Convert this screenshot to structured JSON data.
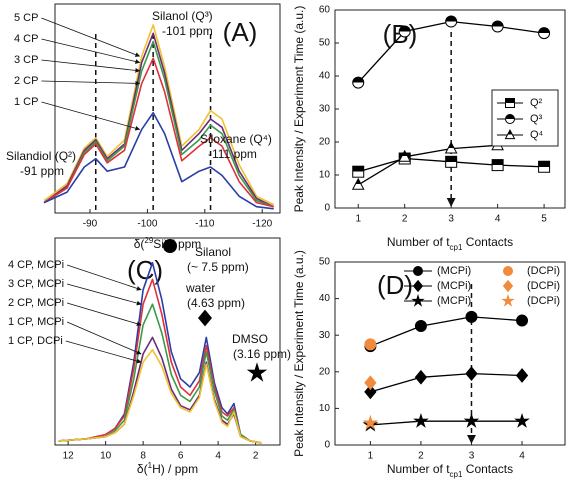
{
  "chart_data": [
    {
      "type": "line",
      "panel_label": "(A)",
      "x_label": [
        "δ(",
        "29",
        "Si) / ppm"
      ],
      "x": [
        -82,
        -86,
        -89,
        -91,
        -93,
        -96,
        -99,
        -101,
        -103,
        -106,
        -109,
        -111,
        -113,
        -116,
        -119,
        -122
      ],
      "xlim": [
        -83.9,
        -123.1
      ],
      "xticks": [
        -90,
        -100,
        -110,
        -120
      ],
      "ylim": [
        0,
        100
      ],
      "series": [
        {
          "name": "5 CP",
          "color": "#f2c12e",
          "values": [
            6,
            14,
            31,
            36,
            27,
            35,
            75,
            90,
            70,
            32,
            40,
            49,
            45,
            23,
            8,
            4
          ]
        },
        {
          "name": "4 CP",
          "color": "#6a2c7a",
          "values": [
            5,
            13,
            30,
            35,
            26,
            33,
            72,
            86,
            67,
            30,
            38,
            45,
            41,
            20,
            7,
            3
          ]
        },
        {
          "name": "3 CP",
          "color": "#3a9a4a",
          "values": [
            5,
            12,
            29,
            34,
            25,
            32,
            68,
            82,
            64,
            28,
            35,
            42,
            38,
            18,
            6,
            3
          ]
        },
        {
          "name": "2 CP",
          "color": "#e0303a",
          "values": [
            5,
            12,
            28,
            33,
            24,
            30,
            62,
            74,
            58,
            25,
            32,
            36,
            32,
            15,
            5,
            3
          ]
        },
        {
          "name": "1 CP",
          "color": "#2a3ea8",
          "values": [
            5,
            10,
            22,
            26,
            20,
            22,
            40,
            48,
            38,
            15,
            20,
            22,
            18,
            8,
            3,
            2
          ]
        }
      ],
      "reference_lines": [
        -91,
        -101,
        -111
      ],
      "annotations": [
        "Silanol (Q³)",
        "-101 ppm",
        "Siloxane (Q⁴)",
        "-111 ppm",
        "Silandiol (Q²)",
        "-91 ppm"
      ]
    },
    {
      "type": "line",
      "panel_label": "(B)",
      "x_label": [
        "Number of t",
        "cp1",
        " Contacts"
      ],
      "y_label": "Peak Intensity / Experiment Time (a.u.)",
      "x": [
        1,
        2,
        3,
        4,
        5
      ],
      "xlim": [
        0.5,
        5.45
      ],
      "xticks": [
        1,
        2,
        3,
        4,
        5
      ],
      "ylim": [
        0,
        60
      ],
      "yticks": [
        0,
        10,
        20,
        30,
        40,
        50,
        60
      ],
      "series": [
        {
          "name": "Q²",
          "marker": "square",
          "fill": "half",
          "color": "#000",
          "values": [
            11,
            15,
            14,
            13,
            12.5
          ]
        },
        {
          "name": "Q³",
          "marker": "circle",
          "fill": "half",
          "color": "#000",
          "values": [
            38,
            53.5,
            56.5,
            55,
            53
          ]
        },
        {
          "name": "Q⁴",
          "marker": "triangle",
          "fill": "half",
          "color": "#000",
          "values": [
            7,
            15.5,
            18,
            19,
            20.5
          ]
        }
      ],
      "reference_lines": [
        3
      ],
      "legend": "right"
    },
    {
      "type": "line",
      "panel_label": "(C)",
      "x_label": [
        "δ(",
        "1",
        "H) / ppm"
      ],
      "x": [
        12.5,
        11,
        10,
        9.5,
        9,
        8.5,
        8,
        7.5,
        7,
        6.5,
        6,
        5.5,
        5,
        4.63,
        4.2,
        3.8,
        3.5,
        3.16,
        2.8,
        2.3,
        1.7
      ],
      "xlim": [
        12.7,
        0.7
      ],
      "xticks": [
        12,
        10,
        8,
        6,
        4,
        2
      ],
      "ylim": [
        0,
        100
      ],
      "series": [
        {
          "name": "4 CP, MCPi",
          "color": "#2a3ea8",
          "values": [
            2,
            3,
            5,
            8,
            15,
            40,
            75,
            88,
            70,
            45,
            32,
            28,
            35,
            52,
            30,
            18,
            15,
            20,
            5,
            2,
            1
          ]
        },
        {
          "name": "3 CP, MCPi",
          "color": "#e0303a",
          "values": [
            2,
            3,
            5,
            8,
            14,
            37,
            68,
            80,
            63,
            40,
            28,
            24,
            31,
            48,
            28,
            16,
            14,
            18,
            5,
            2,
            1
          ]
        },
        {
          "name": "2 CP, MCPi",
          "color": "#3a9a4a",
          "values": [
            2,
            3,
            4,
            7,
            12,
            32,
            58,
            68,
            54,
            34,
            24,
            21,
            28,
            45,
            26,
            14,
            12,
            17,
            5,
            2,
            1
          ]
        },
        {
          "name": "1 CP, MCPi",
          "color": "#6a2c7a",
          "values": [
            2,
            3,
            4,
            6,
            10,
            26,
            44,
            52,
            42,
            27,
            19,
            17,
            24,
            40,
            22,
            12,
            10,
            15,
            4,
            2,
            1
          ]
        },
        {
          "name": "1 CP, DCPi",
          "color": "#f2c12e",
          "values": [
            2,
            3,
            4,
            6,
            10,
            24,
            40,
            46,
            38,
            25,
            18,
            16,
            23,
            39,
            21,
            11,
            9,
            16,
            4,
            2,
            1
          ]
        }
      ],
      "annotations": [
        "Silanol",
        "(~ 7.5 ppm)",
        "water",
        "(4.63 ppm)",
        "DMSO",
        "(3.16 ppm)"
      ]
    },
    {
      "type": "line",
      "panel_label": "(D)",
      "x_label": [
        "Number of t",
        "cp1",
        " Contacts"
      ],
      "y_label": "Peak Intensity / Experiment Time (a.u.)",
      "x": [
        1,
        2,
        3,
        4
      ],
      "xlim": [
        0.3,
        4.85
      ],
      "xticks": [
        1,
        2,
        3,
        4
      ],
      "ylim": [
        0,
        50
      ],
      "yticks": [
        0,
        10,
        20,
        30,
        40,
        50
      ],
      "series": [
        {
          "name": "(MCPi)",
          "marker": "circle",
          "color": "#000",
          "values": [
            27,
            32.5,
            35,
            34
          ]
        },
        {
          "name": "(MCPi)",
          "marker": "diamond",
          "color": "#000",
          "values": [
            14.5,
            18.5,
            19.5,
            19
          ]
        },
        {
          "name": "(MCPi)",
          "marker": "star",
          "color": "#000",
          "values": [
            5.5,
            6.5,
            6.5,
            6.5
          ]
        },
        {
          "name": "(DCPi)",
          "marker": "circle",
          "color": "#f08a3c",
          "line": false,
          "values": [
            27.5,
            null,
            null,
            null
          ]
        },
        {
          "name": "(DCPi)",
          "marker": "diamond",
          "color": "#f08a3c",
          "line": false,
          "values": [
            17,
            null,
            null,
            null
          ]
        },
        {
          "name": "(DCPi)",
          "marker": "star",
          "color": "#f08a3c",
          "line": false,
          "values": [
            6,
            null,
            null,
            null
          ]
        }
      ],
      "reference_lines": [
        3
      ],
      "legend": "top"
    }
  ]
}
